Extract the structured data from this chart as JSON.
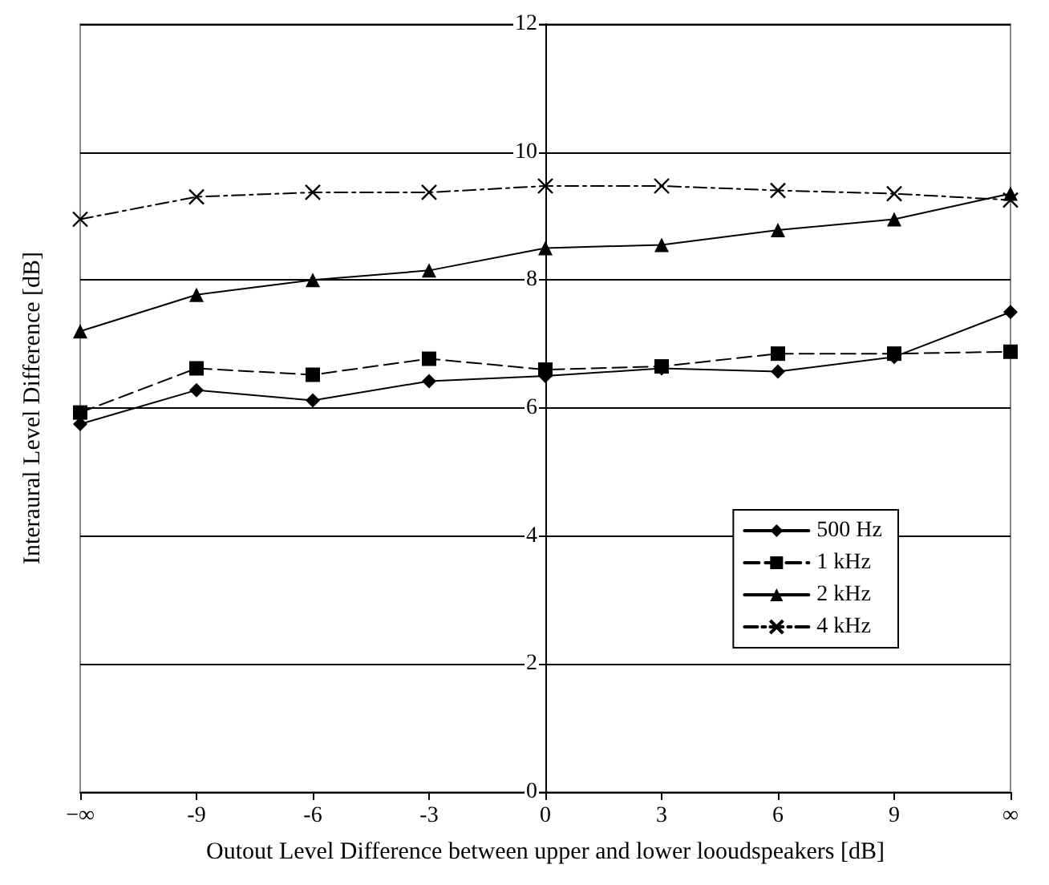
{
  "chart_data": {
    "type": "line",
    "xlabel": "Outout Level Difference between upper and lower looudspeakers [dB]",
    "ylabel": "Interaural Level Difference [dB]",
    "categories": [
      "−∞",
      "-9",
      "-6",
      "-3",
      "0",
      "3",
      "6",
      "9",
      "∞"
    ],
    "ylim": [
      0,
      12
    ],
    "yticks": [
      0,
      2,
      4,
      6,
      8,
      10,
      12
    ],
    "grid": "y",
    "legend": "bottom right",
    "series": [
      {
        "name": "500 Hz",
        "color": "#000000",
        "marker": "diamond",
        "line_style": "solid",
        "values": [
          5.75,
          6.28,
          6.12,
          6.42,
          6.5,
          6.62,
          6.57,
          6.8,
          7.5
        ]
      },
      {
        "name": "1 kHz",
        "color": "#000000",
        "marker": "square",
        "line_style": "dashed",
        "values": [
          5.93,
          6.62,
          6.52,
          6.77,
          6.6,
          6.65,
          6.85,
          6.85,
          6.88
        ]
      },
      {
        "name": "2 kHz",
        "color": "#000000",
        "marker": "triangle",
        "line_style": "solid",
        "values": [
          7.2,
          7.77,
          8.0,
          8.15,
          8.5,
          8.55,
          8.78,
          8.95,
          9.35
        ]
      },
      {
        "name": "4 kHz",
        "color": "#000000",
        "marker": "cross",
        "line_style": "dashdot",
        "values": [
          8.95,
          9.3,
          9.37,
          9.37,
          9.47,
          9.47,
          9.4,
          9.35,
          9.25
        ]
      }
    ]
  }
}
